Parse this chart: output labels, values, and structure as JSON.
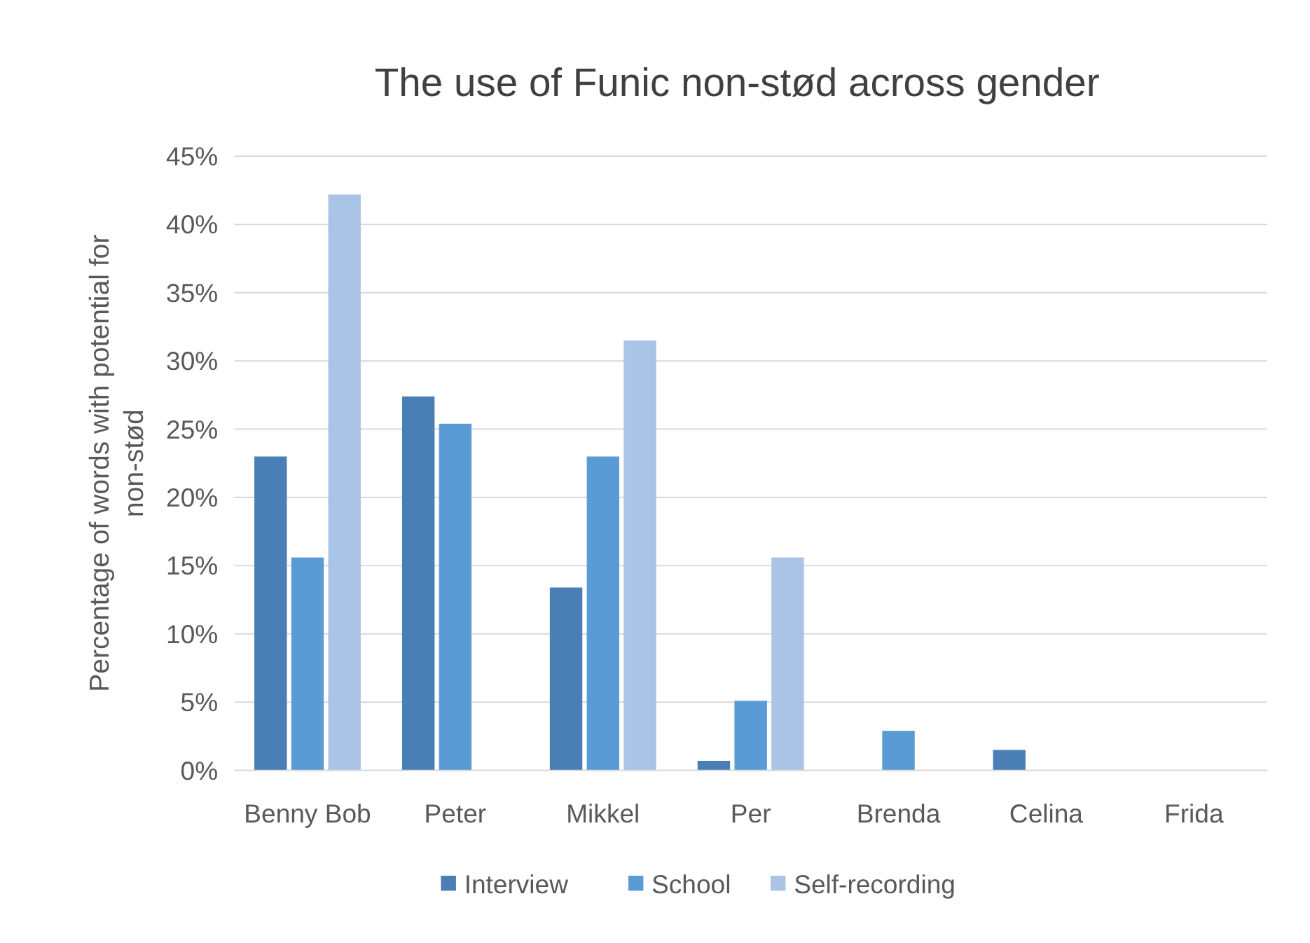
{
  "chart_data": {
    "type": "bar",
    "title": "The use of Funic non-stød across gender",
    "ylabel": "Percentage of words with potential for non-stød",
    "categories": [
      "Benny Bob",
      "Peter",
      "Mikkel",
      "Per",
      "Brenda",
      "Celina",
      "Frida"
    ],
    "series": [
      {
        "name": "Interview",
        "color": "#4a7fb5",
        "values": [
          23,
          27.4,
          13.4,
          0.7,
          0,
          1.5,
          0
        ]
      },
      {
        "name": "School",
        "color": "#5b9bd5",
        "values": [
          15.6,
          25.4,
          23,
          5.1,
          2.9,
          0,
          0
        ]
      },
      {
        "name": "Self-recording",
        "color": "#aac4e6",
        "values": [
          42.2,
          0,
          31.5,
          15.6,
          0,
          0,
          0
        ]
      }
    ],
    "ylim": [
      0,
      45
    ],
    "yticks": [
      {
        "value": 0,
        "label": "0%"
      },
      {
        "value": 5,
        "label": "5%"
      },
      {
        "value": 10,
        "label": "10%"
      },
      {
        "value": 15,
        "label": "15%"
      },
      {
        "value": 20,
        "label": "20%"
      },
      {
        "value": 25,
        "label": "25%"
      },
      {
        "value": 30,
        "label": "30%"
      },
      {
        "value": 35,
        "label": "35%"
      },
      {
        "value": 40,
        "label": "40%"
      },
      {
        "value": 45,
        "label": "45%"
      }
    ],
    "grid": "y",
    "legend": "bottom"
  }
}
